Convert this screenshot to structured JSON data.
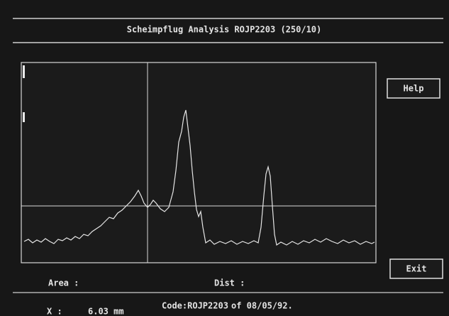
{
  "header": {
    "title": "Scheimpflug Analysis ROJP2203 (250/10)"
  },
  "buttons": {
    "help": "Help",
    "exit": "Exit"
  },
  "readouts": {
    "area": "Area :",
    "dist": "Dist :",
    "x_label": "X :",
    "x_value": "6.03 mm"
  },
  "footer": {
    "code": "Code:ROJP2203",
    "date": "of 08/05/92."
  }
}
